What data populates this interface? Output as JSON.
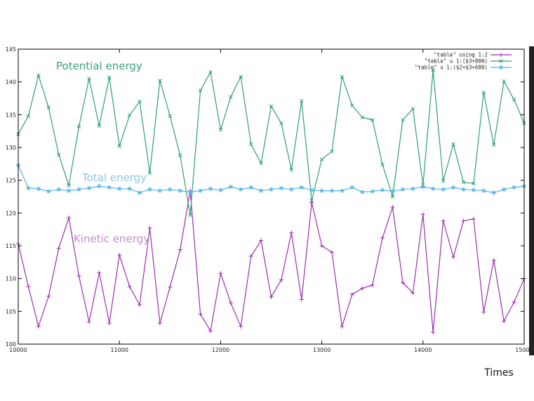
{
  "chart_data": {
    "type": "line",
    "title": "",
    "xlabel": "Times",
    "ylabel": "",
    "xlim": [
      10000,
      15000
    ],
    "ylim": [
      100,
      145
    ],
    "x_ticks": [
      "10000",
      "11000",
      "12000",
      "13000",
      "14000",
      "15000"
    ],
    "y_ticks": [
      "100",
      "105",
      "110",
      "115",
      "120",
      "125",
      "130",
      "135",
      "140",
      "145"
    ],
    "legend_position": "top-right",
    "x": [
      10000,
      10100,
      10200,
      10300,
      10400,
      10500,
      10600,
      10700,
      10800,
      10900,
      11000,
      11100,
      11200,
      11300,
      11400,
      11500,
      11600,
      11700,
      11800,
      11900,
      12000,
      12100,
      12200,
      12300,
      12400,
      12500,
      12600,
      12700,
      12800,
      12900,
      13000,
      13100,
      13200,
      13300,
      13400,
      13500,
      13600,
      13700,
      13800,
      13900,
      14000,
      14100,
      14200,
      14300,
      14400,
      14500,
      14600,
      14700,
      14800,
      14900,
      15000
    ],
    "series": [
      {
        "name": "\"table\" using 1:2",
        "color": "#9b2fae",
        "marker": "+",
        "values": [
          115.3,
          108.8,
          102.7,
          107.3,
          114.6,
          119.3,
          110.4,
          103.4,
          110.9,
          103.2,
          113.6,
          108.8,
          106.0,
          117.7,
          103.2,
          108.7,
          114.4,
          123.4,
          104.6,
          102.0,
          110.8,
          106.3,
          102.7,
          113.4,
          115.8,
          107.2,
          109.8,
          117.0,
          106.8,
          121.6,
          115.0,
          114.0,
          102.7,
          107.6,
          108.5,
          109.0,
          116.2,
          120.9,
          109.4,
          107.8,
          119.8,
          101.8,
          118.8,
          113.3,
          118.8,
          119.1,
          104.9,
          112.8,
          103.5,
          106.4,
          110.0
        ]
      },
      {
        "name": "\"table\" u 1:($3+800)",
        "color": "#2f9e7e",
        "marker": "x",
        "values": [
          132.0,
          134.8,
          141.0,
          136.1,
          128.9,
          124.2,
          133.2,
          140.5,
          133.3,
          140.7,
          130.2,
          134.9,
          137.0,
          126.1,
          140.2,
          134.8,
          128.8,
          119.7,
          138.7,
          141.5,
          132.7,
          137.7,
          140.8,
          130.5,
          127.6,
          136.3,
          133.7,
          126.6,
          137.1,
          121.9,
          128.2,
          129.4,
          140.8,
          136.4,
          134.6,
          134.2,
          127.4,
          122.5,
          134.2,
          135.9,
          124.3,
          141.8,
          124.9,
          130.5,
          124.7,
          124.5,
          138.4,
          130.4,
          140.1,
          137.3,
          133.7
        ]
      },
      {
        "name": "\"table\" u 1:($2+$3+680)",
        "color": "#56b4e9",
        "marker": "*",
        "values": [
          127.3,
          123.8,
          123.7,
          123.3,
          123.6,
          123.4,
          123.6,
          123.8,
          124.1,
          123.9,
          123.7,
          123.7,
          123.1,
          123.6,
          123.4,
          123.6,
          123.4,
          123.2,
          123.4,
          123.7,
          123.5,
          124.0,
          123.6,
          123.9,
          123.4,
          123.6,
          123.8,
          123.6,
          123.9,
          123.5,
          123.4,
          123.4,
          123.4,
          123.9,
          123.2,
          123.3,
          123.5,
          123.3,
          123.6,
          123.7,
          124.0,
          123.7,
          123.6,
          123.9,
          123.6,
          123.5,
          123.4,
          123.1,
          123.6,
          123.9,
          124.1
        ]
      }
    ],
    "annotations": [
      {
        "text": "Potential energy",
        "color": "#3d9e7a"
      },
      {
        "text": "Total energy",
        "color": "#8fc6e6"
      },
      {
        "text": "Kinetic energy",
        "color": "#c28fcb"
      }
    ]
  }
}
